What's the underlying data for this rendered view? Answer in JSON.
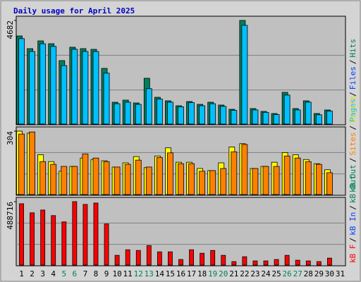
{
  "title": "Daily usage for April 2025",
  "categories": [
    "1",
    "2",
    "3",
    "4",
    "5",
    "6",
    "7",
    "8",
    "9",
    "10",
    "11",
    "12",
    "13",
    "14",
    "15",
    "16",
    "17",
    "18",
    "19",
    "20",
    "21",
    "22",
    "23",
    "24",
    "25",
    "26",
    "27",
    "28",
    "29",
    "30",
    "31"
  ],
  "category_colors": [
    "#000000",
    "#000000",
    "#000000",
    "#000000",
    "#00805C",
    "#00805C",
    "#000000",
    "#000000",
    "#000000",
    "#000000",
    "#000000",
    "#00805C",
    "#00805C",
    "#000000",
    "#000000",
    "#000000",
    "#000000",
    "#000000",
    "#00805C",
    "#00805C",
    "#000000",
    "#000000",
    "#000000",
    "#000000",
    "#000000",
    "#00805C",
    "#00805C",
    "#000000",
    "#000000",
    "#000000",
    "#000000"
  ],
  "chart_data": [
    {
      "type": "bar",
      "ylim": [
        0,
        4682
      ],
      "yticks": [
        4682
      ],
      "axis_label": [
        {
          "text": "Pages",
          "color": "#00C0FF"
        },
        {
          "text": "/",
          "color": "#000000"
        },
        {
          "text": "Files",
          "color": "#0040FF"
        },
        {
          "text": "/",
          "color": "#000000"
        },
        {
          "text": "Hits",
          "color": "#00805C"
        }
      ],
      "series": [
        {
          "color": "#00805C",
          "values": [
            3981,
            3408,
            3758,
            3631,
            2867,
            3472,
            3408,
            3376,
            2516,
            987,
            1083,
            955,
            2070,
            1210,
            1051,
            828,
            1019,
            892,
            987,
            860,
            669,
            4682,
            701,
            573,
            478,
            1433,
            701,
            1051,
            478,
            637,
            null
          ]
        },
        {
          "color": "#00C0FF",
          "values": [
            3860,
            3280,
            3630,
            3510,
            2640,
            3380,
            3280,
            3280,
            2300,
            920,
            990,
            890,
            1600,
            1130,
            990,
            780,
            970,
            830,
            920,
            800,
            620,
            4460,
            640,
            530,
            430,
            1310,
            640,
            990,
            420,
            590,
            null
          ]
        }
      ]
    },
    {
      "type": "bar",
      "ylim": [
        0,
        304
      ],
      "yticks": [
        304
      ],
      "axis_label": [
        {
          "text": "kB Out",
          "color": "#00805C"
        },
        {
          "text": "/",
          "color": "#000000"
        },
        {
          "text": "Sites",
          "color": "#FF8000"
        },
        {
          "text": "/",
          "color": "#000000"
        },
        {
          "text": "Visits",
          "color": "#E0E000"
        }
      ],
      "series": [
        {
          "color": "#FFFF00",
          "values": [
            304,
            294,
            191,
            158,
            112,
            135,
            175,
            168,
            162,
            132,
            152,
            182,
            129,
            185,
            224,
            155,
            155,
            125,
            115,
            152,
            228,
            244,
            125,
            135,
            155,
            201,
            191,
            168,
            148,
            119,
            null
          ]
        },
        {
          "color": "#FF8000",
          "values": [
            290,
            300,
            158,
            145,
            135,
            135,
            195,
            175,
            158,
            132,
            145,
            165,
            132,
            178,
            200,
            148,
            148,
            112,
            115,
            125,
            205,
            240,
            125,
            135,
            135,
            185,
            175,
            158,
            145,
            105,
            null
          ]
        }
      ]
    },
    {
      "type": "bar",
      "ylim": [
        0,
        488716
      ],
      "yticks": [
        488716
      ],
      "axis_label": [
        {
          "text": "kB F",
          "color": "#FF0000"
        },
        {
          "text": "/",
          "color": "#000000"
        },
        {
          "text": "kB In",
          "color": "#0040FF"
        },
        {
          "text": "/",
          "color": "#000000"
        },
        {
          "text": "kB Out",
          "color": "#00805C"
        }
      ],
      "series": [
        {
          "color": "#FF0000",
          "values": [
            472600,
            402800,
            424200,
            381300,
            332900,
            488716,
            467200,
            478000,
            316800,
            75200,
            118100,
            112800,
            150400,
            102000,
            102000,
            43000,
            118100,
            91300,
            112800,
            75200,
            26900,
            64400,
            32200,
            32200,
            43000,
            75200,
            37600,
            32200,
            26900,
            53700,
            null
          ]
        }
      ]
    }
  ]
}
